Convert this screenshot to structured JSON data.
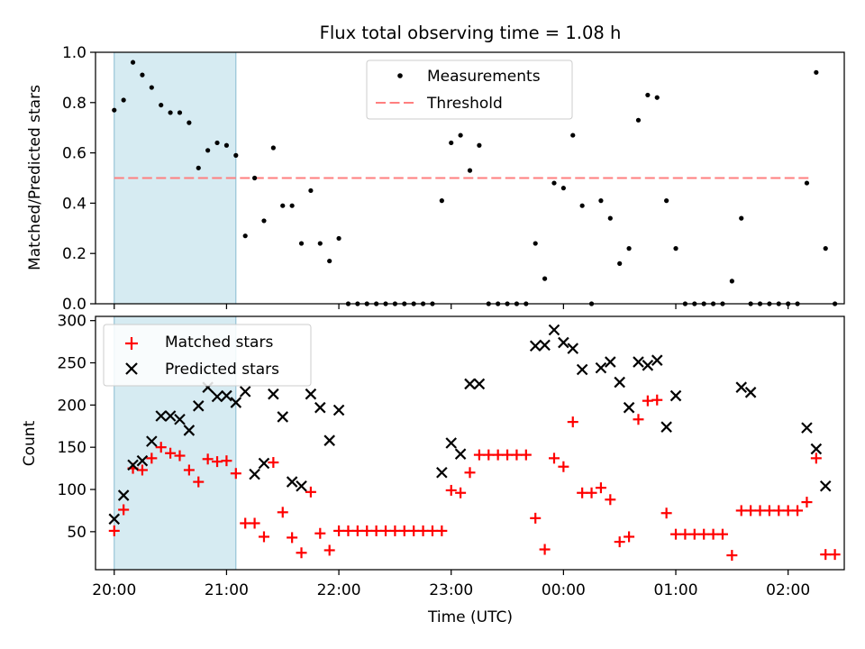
{
  "chart_data": [
    {
      "type": "scatter",
      "title": "Flux total observing time = 1.08 h",
      "xlabel": "",
      "ylabel": "Matched/Predicted stars",
      "x_unit": "time (UTC)",
      "xlim": [
        "19:50",
        "26:30"
      ],
      "ylim": [
        0,
        1.0
      ],
      "yticks": [
        "0.0",
        "0.2",
        "0.4",
        "0.6",
        "0.8",
        "1.0"
      ],
      "xticks": [
        "20:00",
        "21:00",
        "22:00",
        "23:00",
        "00:00",
        "01:00",
        "02:00"
      ],
      "x_tick_labels_shown": false,
      "shaded_interval": [
        "20:00",
        "21:05"
      ],
      "legend": {
        "position": "top-center",
        "entries": [
          "Measurements",
          "Threshold"
        ]
      },
      "threshold": {
        "name": "Threshold",
        "y": 0.5,
        "x_range": [
          "20:00",
          "26:13"
        ],
        "color": "#ff7f7f",
        "style": "dashed"
      },
      "series": [
        {
          "name": "Measurements",
          "marker": "dot",
          "color": "#000000",
          "points": [
            [
              "20:00",
              0.77
            ],
            [
              "20:05",
              0.81
            ],
            [
              "20:10",
              0.96
            ],
            [
              "20:15",
              0.91
            ],
            [
              "20:20",
              0.86
            ],
            [
              "20:25",
              0.79
            ],
            [
              "20:30",
              0.76
            ],
            [
              "20:35",
              0.76
            ],
            [
              "20:40",
              0.72
            ],
            [
              "20:45",
              0.54
            ],
            [
              "20:50",
              0.61
            ],
            [
              "20:55",
              0.64
            ],
            [
              "21:00",
              0.63
            ],
            [
              "21:05",
              0.59
            ],
            [
              "21:10",
              0.27
            ],
            [
              "21:15",
              0.5
            ],
            [
              "21:20",
              0.33
            ],
            [
              "21:25",
              0.62
            ],
            [
              "21:30",
              0.39
            ],
            [
              "21:35",
              0.39
            ],
            [
              "21:40",
              0.24
            ],
            [
              "21:45",
              0.45
            ],
            [
              "21:50",
              0.24
            ],
            [
              "21:55",
              0.17
            ],
            [
              "22:00",
              0.26
            ],
            [
              "22:05",
              0.0
            ],
            [
              "22:10",
              0.0
            ],
            [
              "22:15",
              0.0
            ],
            [
              "22:20",
              0.0
            ],
            [
              "22:25",
              0.0
            ],
            [
              "22:30",
              0.0
            ],
            [
              "22:35",
              0.0
            ],
            [
              "22:40",
              0.0
            ],
            [
              "22:45",
              0.0
            ],
            [
              "22:50",
              0.0
            ],
            [
              "22:55",
              0.41
            ],
            [
              "23:00",
              0.64
            ],
            [
              "23:05",
              0.67
            ],
            [
              "23:10",
              0.53
            ],
            [
              "23:15",
              0.63
            ],
            [
              "23:20",
              0.0
            ],
            [
              "23:25",
              0.0
            ],
            [
              "23:30",
              0.0
            ],
            [
              "23:35",
              0.0
            ],
            [
              "23:40",
              0.0
            ],
            [
              "23:45",
              0.24
            ],
            [
              "23:50",
              0.1
            ],
            [
              "23:55",
              0.48
            ],
            [
              "24:00",
              0.46
            ],
            [
              "24:05",
              0.67
            ],
            [
              "24:10",
              0.39
            ],
            [
              "24:15",
              0.0
            ],
            [
              "24:20",
              0.41
            ],
            [
              "24:25",
              0.34
            ],
            [
              "24:30",
              0.16
            ],
            [
              "24:35",
              0.22
            ],
            [
              "24:40",
              0.73
            ],
            [
              "24:45",
              0.83
            ],
            [
              "24:50",
              0.82
            ],
            [
              "24:55",
              0.41
            ],
            [
              "25:00",
              0.22
            ],
            [
              "25:05",
              0.0
            ],
            [
              "25:10",
              0.0
            ],
            [
              "25:15",
              0.0
            ],
            [
              "25:20",
              0.0
            ],
            [
              "25:25",
              0.0
            ],
            [
              "25:30",
              0.09
            ],
            [
              "25:35",
              0.34
            ],
            [
              "25:40",
              0.0
            ],
            [
              "25:45",
              0.0
            ],
            [
              "25:50",
              0.0
            ],
            [
              "25:55",
              0.0
            ],
            [
              "26:00",
              0.0
            ],
            [
              "26:05",
              0.0
            ],
            [
              "26:10",
              0.48
            ],
            [
              "26:15",
              0.92
            ],
            [
              "26:20",
              0.22
            ],
            [
              "26:25",
              0.0
            ]
          ]
        }
      ]
    },
    {
      "type": "scatter",
      "title": "",
      "xlabel": "Time (UTC)",
      "ylabel": "Count",
      "xlim": [
        "19:50",
        "26:30"
      ],
      "ylim": [
        5,
        305
      ],
      "yticks": [
        "50",
        "100",
        "150",
        "200",
        "250",
        "300"
      ],
      "xticks": [
        "20:00",
        "21:00",
        "22:00",
        "23:00",
        "00:00",
        "01:00",
        "02:00"
      ],
      "shaded_interval": [
        "20:00",
        "21:05"
      ],
      "legend": {
        "position": "top-left",
        "entries": [
          "Matched stars",
          "Predicted stars"
        ]
      },
      "series": [
        {
          "name": "Matched stars",
          "marker": "plus",
          "color": "#ff0000",
          "points": [
            [
              "20:00",
              51
            ],
            [
              "20:05",
              76
            ],
            [
              "20:10",
              125
            ],
            [
              "20:15",
              123
            ],
            [
              "20:20",
              137
            ],
            [
              "20:25",
              150
            ],
            [
              "20:30",
              143
            ],
            [
              "20:35",
              140
            ],
            [
              "20:40",
              123
            ],
            [
              "20:45",
              109
            ],
            [
              "20:50",
              136
            ],
            [
              "20:55",
              133
            ],
            [
              "21:00",
              134
            ],
            [
              "21:05",
              119
            ],
            [
              "21:10",
              60
            ],
            [
              "21:15",
              60
            ],
            [
              "21:20",
              44
            ],
            [
              "21:25",
              132
            ],
            [
              "21:30",
              73
            ],
            [
              "21:35",
              43
            ],
            [
              "21:40",
              25
            ],
            [
              "21:45",
              97
            ],
            [
              "21:50",
              48
            ],
            [
              "21:55",
              28
            ],
            [
              "22:00",
              51
            ],
            [
              "22:05",
              51
            ],
            [
              "22:10",
              51
            ],
            [
              "22:15",
              51
            ],
            [
              "22:20",
              51
            ],
            [
              "22:25",
              51
            ],
            [
              "22:30",
              51
            ],
            [
              "22:35",
              51
            ],
            [
              "22:40",
              51
            ],
            [
              "22:45",
              51
            ],
            [
              "22:50",
              51
            ],
            [
              "22:55",
              51
            ],
            [
              "23:00",
              99
            ],
            [
              "23:05",
              96
            ],
            [
              "23:10",
              120
            ],
            [
              "23:15",
              141
            ],
            [
              "23:20",
              141
            ],
            [
              "23:25",
              141
            ],
            [
              "23:30",
              141
            ],
            [
              "23:35",
              141
            ],
            [
              "23:40",
              141
            ],
            [
              "23:45",
              66
            ],
            [
              "23:50",
              29
            ],
            [
              "23:55",
              137
            ],
            [
              "24:00",
              127
            ],
            [
              "24:05",
              180
            ],
            [
              "24:10",
              96
            ],
            [
              "24:15",
              96
            ],
            [
              "24:20",
              102
            ],
            [
              "24:25",
              88
            ],
            [
              "24:30",
              38
            ],
            [
              "24:35",
              44
            ],
            [
              "24:40",
              183
            ],
            [
              "24:45",
              205
            ],
            [
              "24:50",
              206
            ],
            [
              "24:55",
              72
            ],
            [
              "25:00",
              47
            ],
            [
              "25:05",
              47
            ],
            [
              "25:10",
              47
            ],
            [
              "25:15",
              47
            ],
            [
              "25:20",
              47
            ],
            [
              "25:25",
              47
            ],
            [
              "25:30",
              22
            ],
            [
              "25:35",
              75
            ],
            [
              "25:40",
              75
            ],
            [
              "25:45",
              75
            ],
            [
              "25:50",
              75
            ],
            [
              "25:55",
              75
            ],
            [
              "26:00",
              75
            ],
            [
              "26:05",
              75
            ],
            [
              "26:10",
              85
            ],
            [
              "26:15",
              137
            ],
            [
              "26:20",
              23
            ],
            [
              "26:25",
              23
            ]
          ]
        },
        {
          "name": "Predicted stars",
          "marker": "x",
          "color": "#000000",
          "points": [
            [
              "20:00",
              65
            ],
            [
              "20:05",
              93
            ],
            [
              "20:10",
              129
            ],
            [
              "20:15",
              134
            ],
            [
              "20:20",
              157
            ],
            [
              "20:25",
              187
            ],
            [
              "20:30",
              187
            ],
            [
              "20:35",
              183
            ],
            [
              "20:40",
              170
            ],
            [
              "20:45",
              199
            ],
            [
              "20:50",
              221
            ],
            [
              "20:55",
              210
            ],
            [
              "21:00",
              211
            ],
            [
              "21:05",
              203
            ],
            [
              "21:10",
              216
            ],
            [
              "21:15",
              118
            ],
            [
              "21:20",
              131
            ],
            [
              "21:25",
              213
            ],
            [
              "21:30",
              186
            ],
            [
              "21:35",
              109
            ],
            [
              "21:40",
              104
            ],
            [
              "21:45",
              213
            ],
            [
              "21:50",
              197
            ],
            [
              "21:55",
              158
            ],
            [
              "22:00",
              194
            ],
            [
              "22:55",
              120
            ],
            [
              "23:00",
              155
            ],
            [
              "23:05",
              142
            ],
            [
              "23:10",
              225
            ],
            [
              "23:15",
              225
            ],
            [
              "23:45",
              270
            ],
            [
              "23:50",
              271
            ],
            [
              "23:55",
              289
            ],
            [
              "24:00",
              274
            ],
            [
              "24:05",
              267
            ],
            [
              "24:10",
              242
            ],
            [
              "24:20",
              244
            ],
            [
              "24:25",
              251
            ],
            [
              "24:30",
              227
            ],
            [
              "24:35",
              197
            ],
            [
              "24:40",
              251
            ],
            [
              "24:45",
              247
            ],
            [
              "24:50",
              253
            ],
            [
              "24:55",
              174
            ],
            [
              "25:00",
              211
            ],
            [
              "25:35",
              221
            ],
            [
              "25:40",
              215
            ],
            [
              "26:10",
              173
            ],
            [
              "26:15",
              148
            ],
            [
              "26:20",
              104
            ]
          ]
        }
      ]
    }
  ]
}
